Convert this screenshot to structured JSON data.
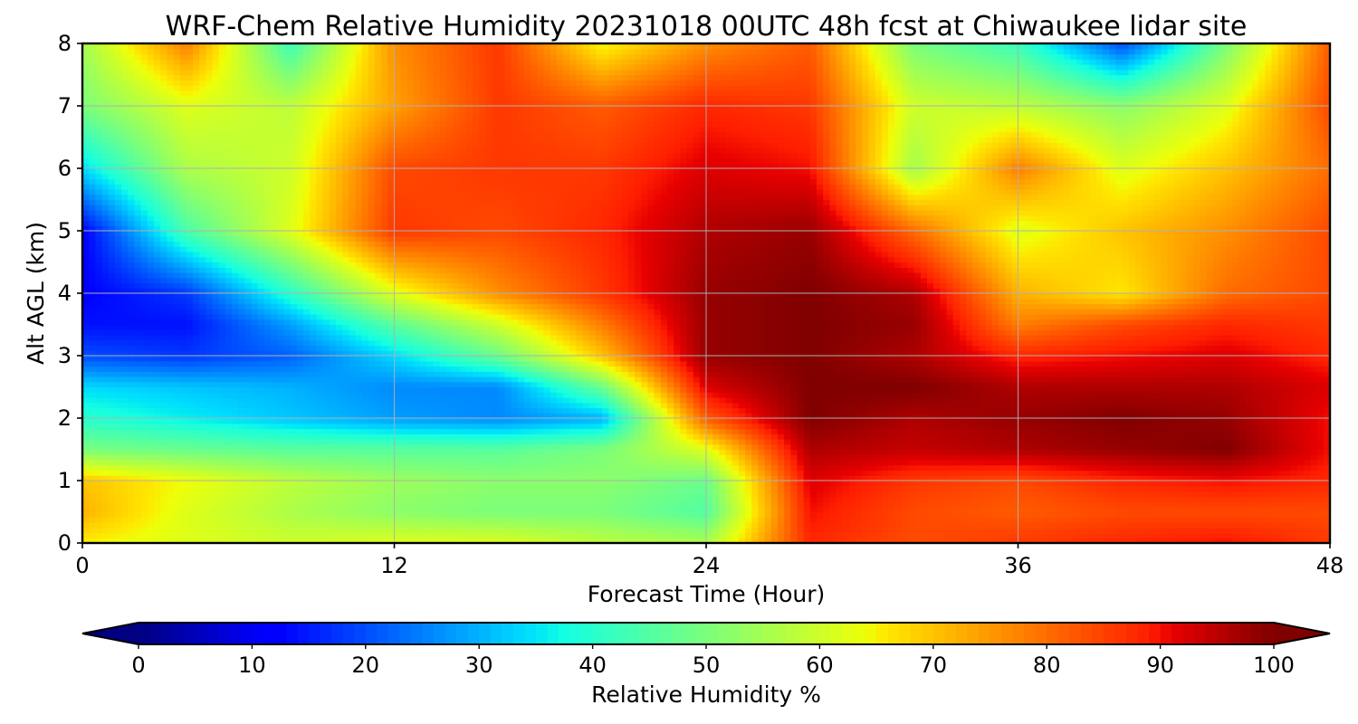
{
  "chart_data": {
    "type": "heatmap",
    "title": "WRF-Chem Relative Humidity 20231018 00UTC 48h fcst at Chiwaukee lidar site",
    "xlabel": "Forecast Time (Hour)",
    "ylabel": "Alt AGL (km)",
    "xlim": [
      0,
      48
    ],
    "ylim": [
      0,
      8
    ],
    "xticks": [
      0,
      12,
      24,
      36,
      48
    ],
    "yticks": [
      0,
      1,
      2,
      3,
      4,
      5,
      6,
      7,
      8
    ],
    "grid": true,
    "colormap": "jet",
    "colorbar": {
      "label": "Relative Humidity %",
      "min": 0,
      "max": 100,
      "ticks": [
        0,
        10,
        20,
        30,
        40,
        50,
        60,
        70,
        80,
        90,
        100
      ],
      "extend": "both",
      "orientation": "horizontal"
    },
    "x": [
      0,
      4,
      8,
      12,
      16,
      20,
      24,
      28,
      32,
      36,
      40,
      44,
      48
    ],
    "y": [
      0,
      0.5,
      1,
      1.5,
      2,
      2.5,
      3,
      3.5,
      4,
      5,
      6,
      7,
      8
    ],
    "values": [
      [
        65,
        62,
        60,
        62,
        62,
        58,
        56,
        88,
        84,
        86,
        88,
        90,
        86
      ],
      [
        72,
        62,
        56,
        52,
        50,
        50,
        45,
        90,
        84,
        82,
        84,
        84,
        84
      ],
      [
        70,
        64,
        58,
        54,
        52,
        52,
        48,
        92,
        86,
        84,
        88,
        90,
        88
      ],
      [
        50,
        48,
        46,
        46,
        46,
        50,
        62,
        96,
        94,
        96,
        98,
        100,
        90
      ],
      [
        40,
        36,
        32,
        28,
        26,
        30,
        82,
        100,
        96,
        98,
        100,
        98,
        90
      ],
      [
        34,
        32,
        30,
        26,
        26,
        48,
        92,
        100,
        100,
        96,
        96,
        96,
        92
      ],
      [
        20,
        18,
        22,
        34,
        48,
        70,
        98,
        100,
        96,
        88,
        90,
        92,
        88
      ],
      [
        14,
        14,
        28,
        46,
        60,
        78,
        98,
        100,
        98,
        78,
        84,
        88,
        86
      ],
      [
        12,
        18,
        40,
        62,
        76,
        86,
        98,
        100,
        96,
        72,
        66,
        80,
        84
      ],
      [
        12,
        44,
        62,
        86,
        84,
        88,
        96,
        98,
        80,
        62,
        70,
        76,
        84
      ],
      [
        34,
        56,
        60,
        84,
        86,
        86,
        92,
        90,
        55,
        78,
        62,
        70,
        80
      ],
      [
        50,
        62,
        58,
        74,
        86,
        82,
        88,
        86,
        60,
        58,
        52,
        62,
        84
      ],
      [
        55,
        78,
        42,
        76,
        86,
        64,
        76,
        82,
        50,
        42,
        20,
        50,
        82
      ]
    ]
  }
}
